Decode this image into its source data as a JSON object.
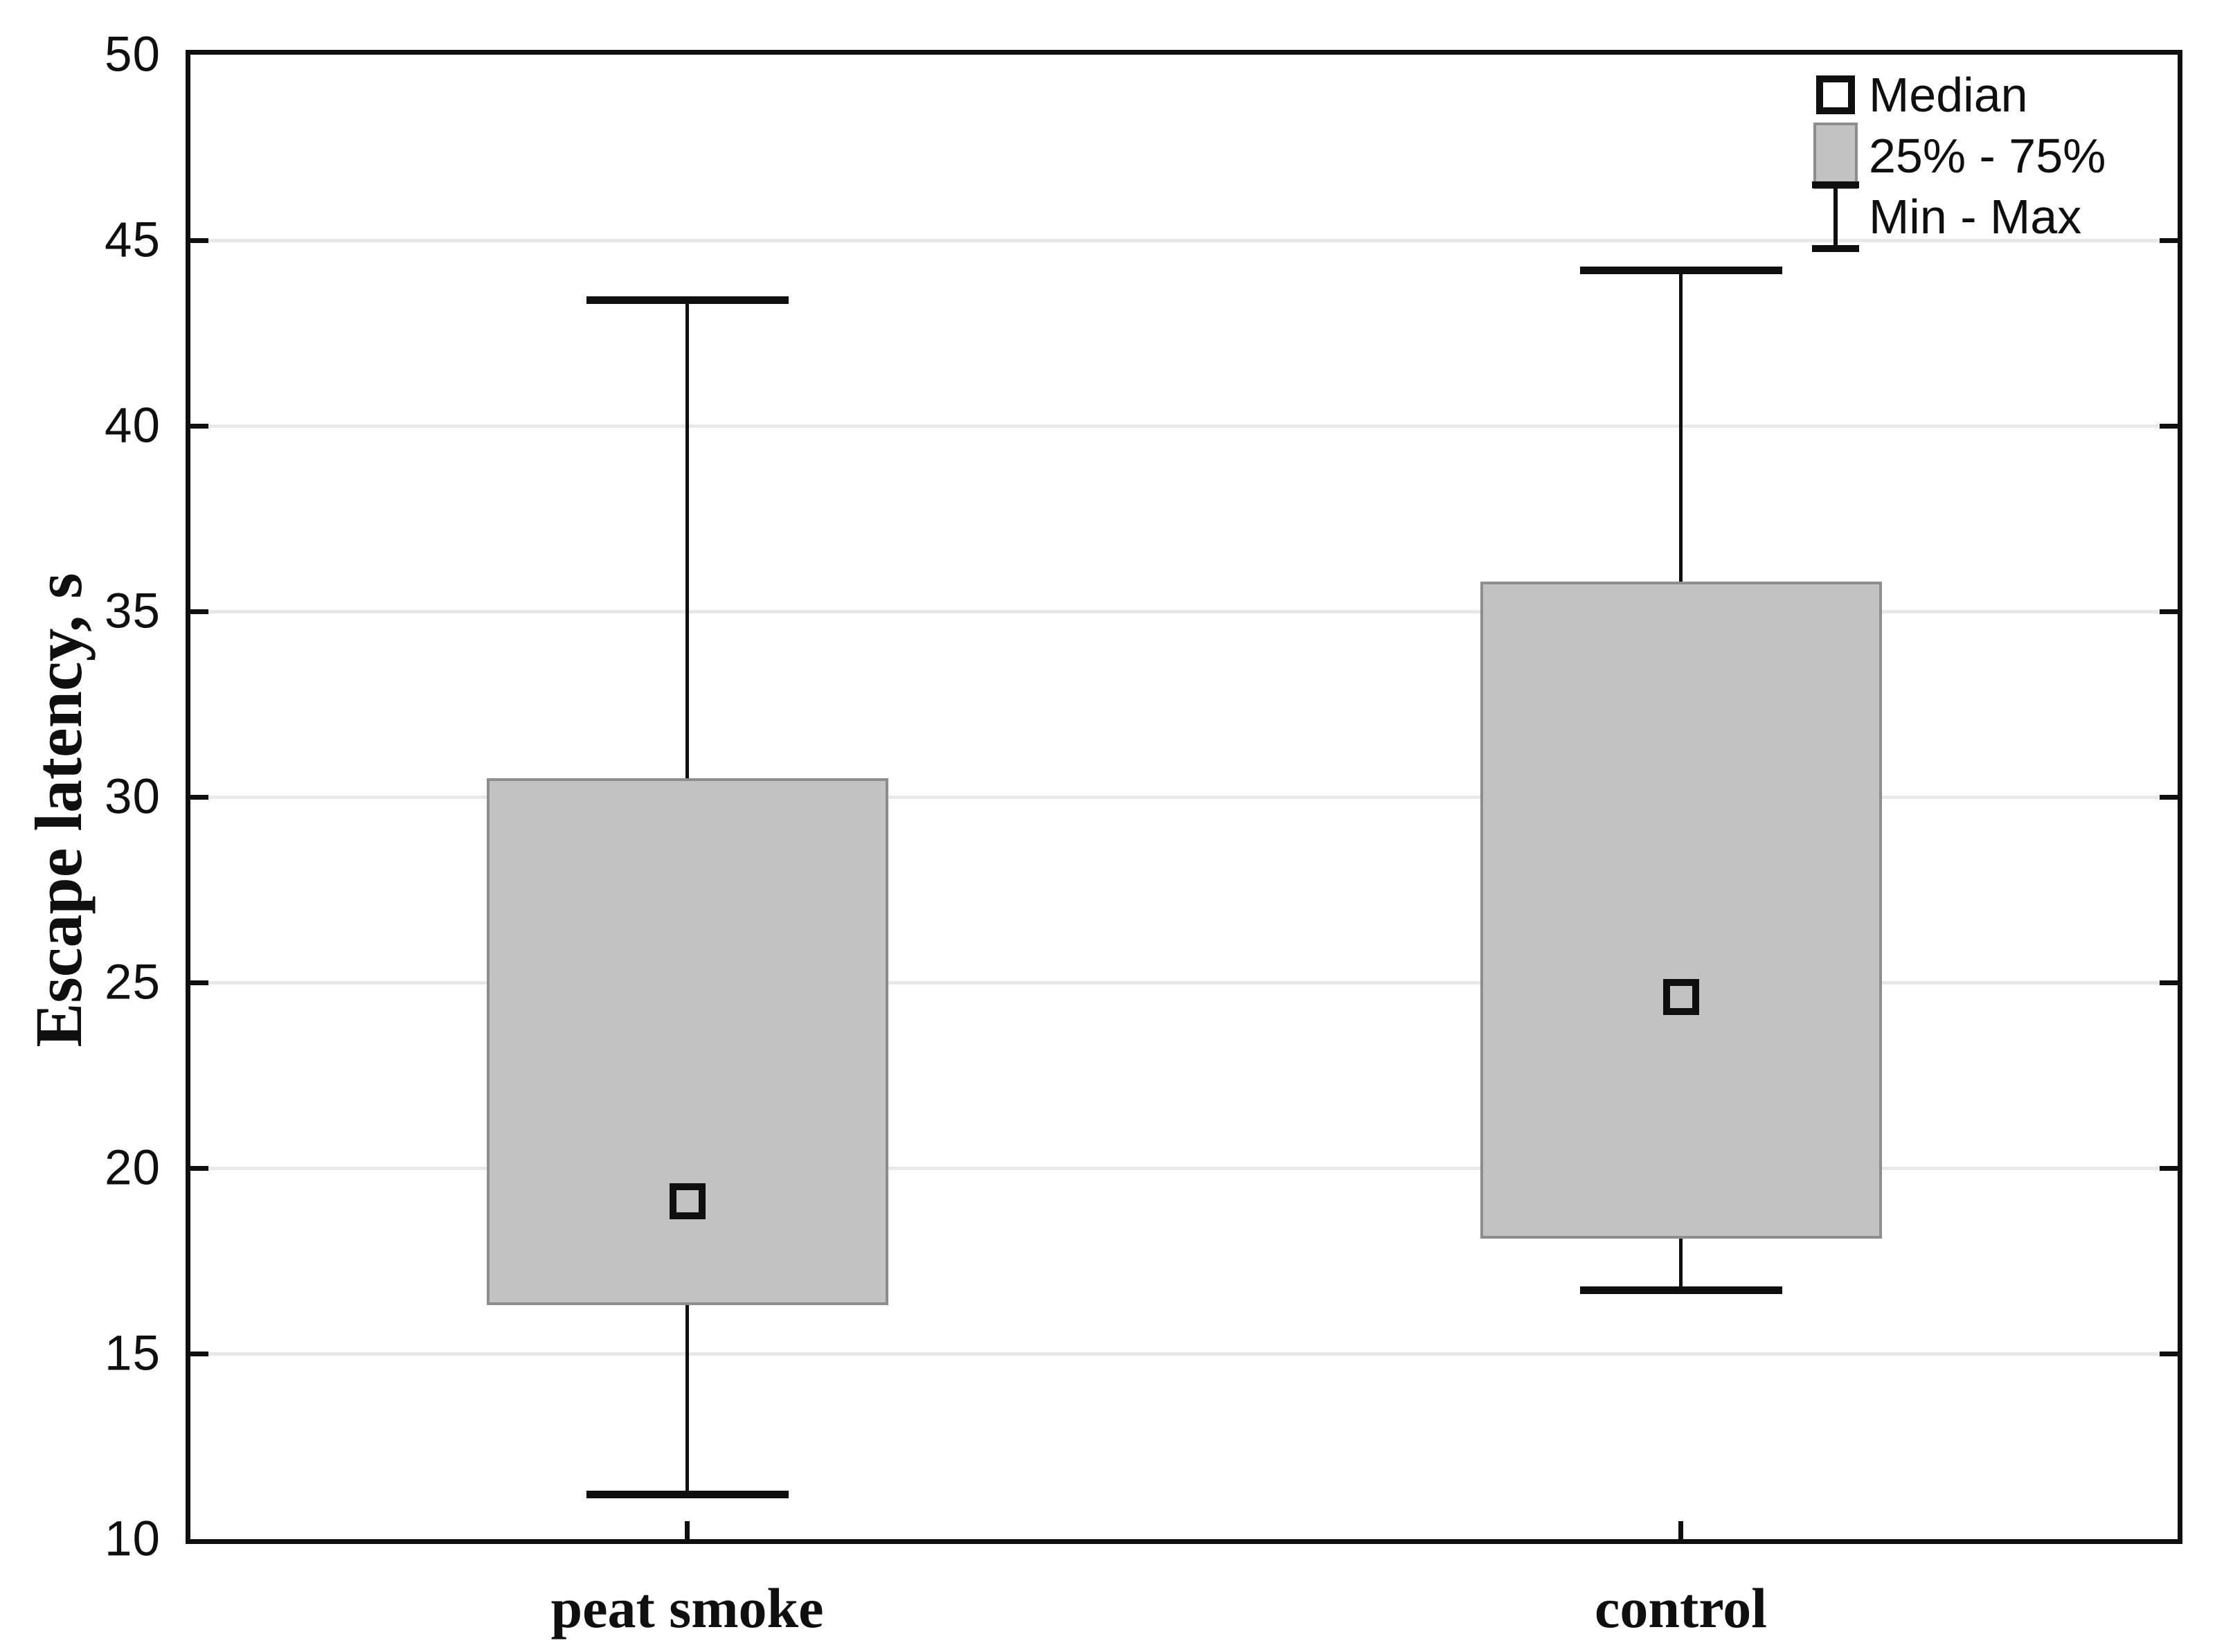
{
  "chart_data": {
    "type": "box",
    "title": "",
    "ylabel": "Escape latency, s",
    "xlabel": "",
    "ylim": [
      10,
      50
    ],
    "yticks": [
      10,
      15,
      20,
      25,
      30,
      35,
      40,
      45,
      50
    ],
    "grid": "horizontal light-gray gridlines at every y tick",
    "legend_position": "top-right inside plot area, no border",
    "categories": [
      "peat smoke",
      "control"
    ],
    "series": [
      {
        "name": "peat smoke",
        "min": 11.2,
        "q1": 16.3,
        "median": 19.1,
        "q3": 30.5,
        "max": 43.4
      },
      {
        "name": "control",
        "min": 16.7,
        "q1": 18.1,
        "median": 24.6,
        "q3": 35.8,
        "max": 44.2
      }
    ],
    "legend": [
      {
        "icon": "median-square-icon",
        "label": "Median"
      },
      {
        "icon": "iqr-box-icon",
        "label": "25% - 75%"
      },
      {
        "icon": "min-max-whisker-icon",
        "label": "Min - Max"
      }
    ]
  },
  "colors": {
    "ink": "#0f0f0f",
    "box_fill": "#c2c2c2",
    "box_border": "#8d8d8d",
    "gridline": "#e8e8e8",
    "median_fill": "#ffffff",
    "background": "#ffffff"
  }
}
